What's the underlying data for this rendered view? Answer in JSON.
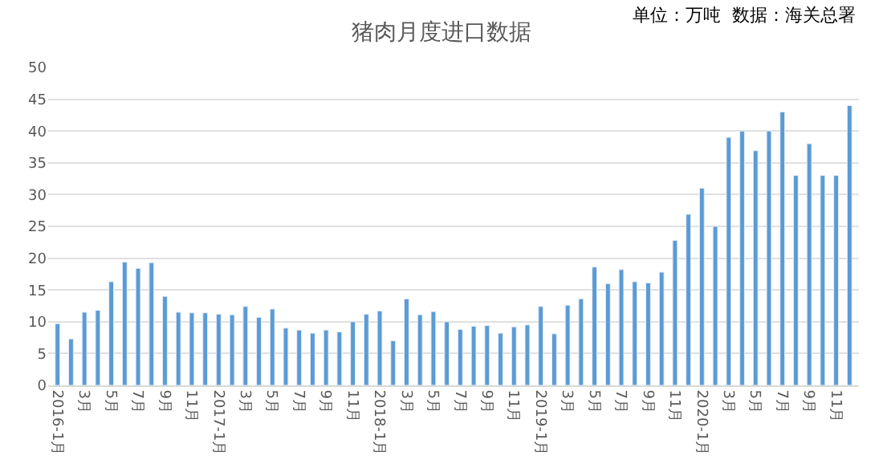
{
  "chart_data": {
    "type": "bar",
    "title": "猪肉月度进口数据",
    "annotations": [
      "单位：万吨  数据：海关总署"
    ],
    "categories": [
      "2016-1月",
      null,
      "3月",
      null,
      "5月",
      null,
      "7月",
      null,
      "9月",
      null,
      "11月",
      null,
      "2017-1月",
      null,
      "3月",
      null,
      "5月",
      null,
      "7月",
      null,
      "9月",
      null,
      "11月",
      null,
      "2018-1月",
      null,
      "3月",
      null,
      "5月",
      null,
      "7月",
      null,
      "9月",
      null,
      "11月",
      null,
      "2019-1月",
      null,
      "3月",
      null,
      "5月",
      null,
      "7月",
      null,
      "9月",
      null,
      "11月",
      null,
      "2020-1月",
      null,
      "3月",
      null,
      "5月",
      null,
      "7月",
      null,
      "9月",
      null,
      "11月",
      null
    ],
    "values": [
      9.7,
      7.3,
      11.5,
      11.8,
      16.3,
      19.4,
      18.4,
      19.3,
      14.0,
      11.5,
      11.4,
      11.4,
      11.2,
      11.1,
      12.4,
      10.7,
      12.0,
      9.0,
      8.7,
      8.2,
      8.7,
      8.4,
      10.0,
      11.2,
      11.7,
      7.0,
      13.6,
      11.1,
      11.6,
      10.0,
      8.8,
      9.3,
      9.4,
      8.2,
      9.2,
      9.5,
      12.4,
      8.1,
      12.6,
      13.6,
      18.6,
      16.0,
      18.2,
      16.3,
      16.1,
      17.8,
      22.8,
      26.9,
      31.0,
      25.0,
      39.0,
      40.0,
      36.9,
      40.0,
      43.0,
      33.0,
      38.0,
      33.0,
      33.0,
      44.0
    ],
    "color": "#5b9bd5",
    "ylim": [
      0,
      50
    ],
    "yticks": [
      0,
      5,
      10,
      15,
      20,
      25,
      30,
      35,
      40,
      45,
      50
    ],
    "grid": "y"
  }
}
